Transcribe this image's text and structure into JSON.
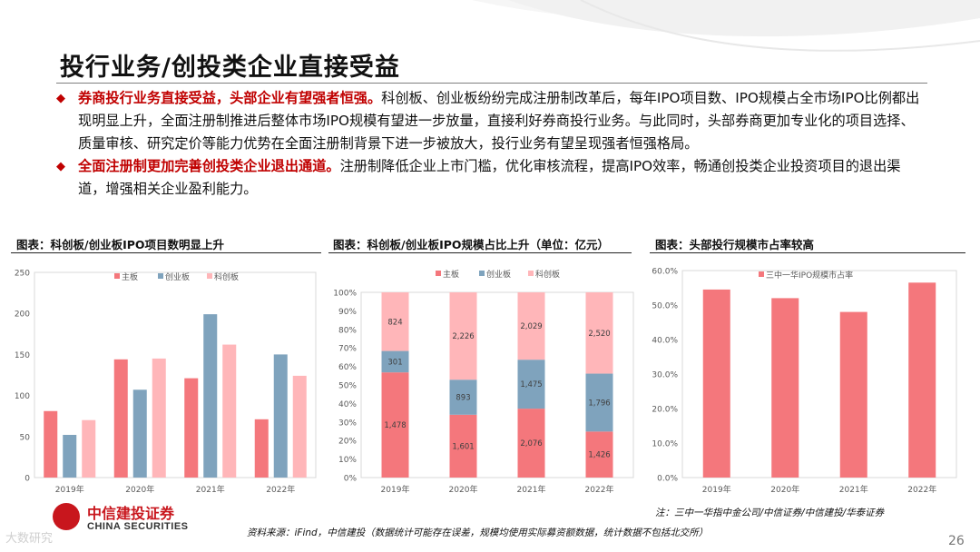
{
  "page": {
    "title": "投行业务/创投类企业直接受益",
    "bullets": [
      {
        "lead": "券商投行业务直接受益，头部企业有望强者恒强。",
        "text": "科创板、创业板纷纷完成注册制改革后，每年IPO项目数、IPO规模占全市场IPO比例都出现明显上升，全面注册制推进后整体市场IPO规模有望进一步放量，直接利好券商投行业务。与此同时，头部券商更加专业化的项目选择、质量审核、研究定价等能力优势在全面注册制背景下进一步被放大，投行业务有望呈现强者恒强格局。"
      },
      {
        "lead": "全面注册制更加完善创投类企业退出通道。",
        "text": "注册制降低企业上市门槛，优化审核流程，提高IPO效率，畅通创投类企业投资项目的退出渠道，增强相关企业盈利能力。"
      }
    ],
    "panel_titles": [
      "图表：科创板/创业板IPO项目数明显上升",
      "图表：科创板/创业板IPO规模占比上升（单位：亿元）",
      "图表：头部投行规模市占率较高"
    ],
    "source": "资料来源：iFind，中信建投（数据统计可能存在误差，规模均使用实际募资额数据，统计数据不包括北交所）",
    "note": "注：三中一华指中金公司/中信证券/中信建投/华泰证券",
    "logo_cn": "中信建投证券",
    "logo_en": "CHINA SECURITIES",
    "page_number": "26",
    "watermark": "大数研究"
  },
  "colors": {
    "main": "#f4777c",
    "chinext": "#7fa3bd",
    "star": "#ffb6b9",
    "accent": "#c00000"
  },
  "chart_data": [
    {
      "type": "bar",
      "categories": [
        "2019年",
        "2020年",
        "2021年",
        "2022年"
      ],
      "series": [
        {
          "name": "主板",
          "values": [
            81,
            144,
            121,
            71
          ]
        },
        {
          "name": "创业板",
          "values": [
            52,
            107,
            199,
            150
          ]
        },
        {
          "name": "科创板",
          "values": [
            70,
            145,
            162,
            124
          ]
        }
      ],
      "ylim": [
        0,
        250
      ],
      "yticks": [
        "0",
        "50",
        "100",
        "150",
        "200",
        "250"
      ],
      "legend": "top-left"
    },
    {
      "type": "bar",
      "stacked_percent": true,
      "categories": [
        "2019年",
        "2020年",
        "2021年",
        "2022年"
      ],
      "series": [
        {
          "name": "主板",
          "values": [
            1478,
            1601,
            2076,
            1426
          ],
          "labels": [
            "1,478",
            "1,601",
            "2,076",
            "1,426"
          ]
        },
        {
          "name": "创业板",
          "values": [
            301,
            893,
            1475,
            1796
          ],
          "labels": [
            "301",
            "893",
            "1,475",
            "1,796"
          ]
        },
        {
          "name": "科创板",
          "values": [
            824,
            2226,
            2029,
            2520
          ],
          "labels": [
            "824",
            "2,226",
            "2,029",
            "2,520"
          ]
        }
      ],
      "ylim": [
        0,
        1
      ],
      "yticks": [
        "0%",
        "10%",
        "20%",
        "30%",
        "40%",
        "50%",
        "60%",
        "70%",
        "80%",
        "90%",
        "100%"
      ],
      "legend": "top-left"
    },
    {
      "type": "bar",
      "categories": [
        "2019年",
        "2020年",
        "2021年",
        "2022年"
      ],
      "series": [
        {
          "name": "三中一华IPO规模市占率",
          "values": [
            0.545,
            0.52,
            0.48,
            0.565
          ]
        }
      ],
      "ylim": [
        0,
        0.6
      ],
      "yticks": [
        "0.0%",
        "10.0%",
        "20.0%",
        "30.0%",
        "40.0%",
        "50.0%",
        "60.0%"
      ],
      "legend": "top-center"
    }
  ]
}
